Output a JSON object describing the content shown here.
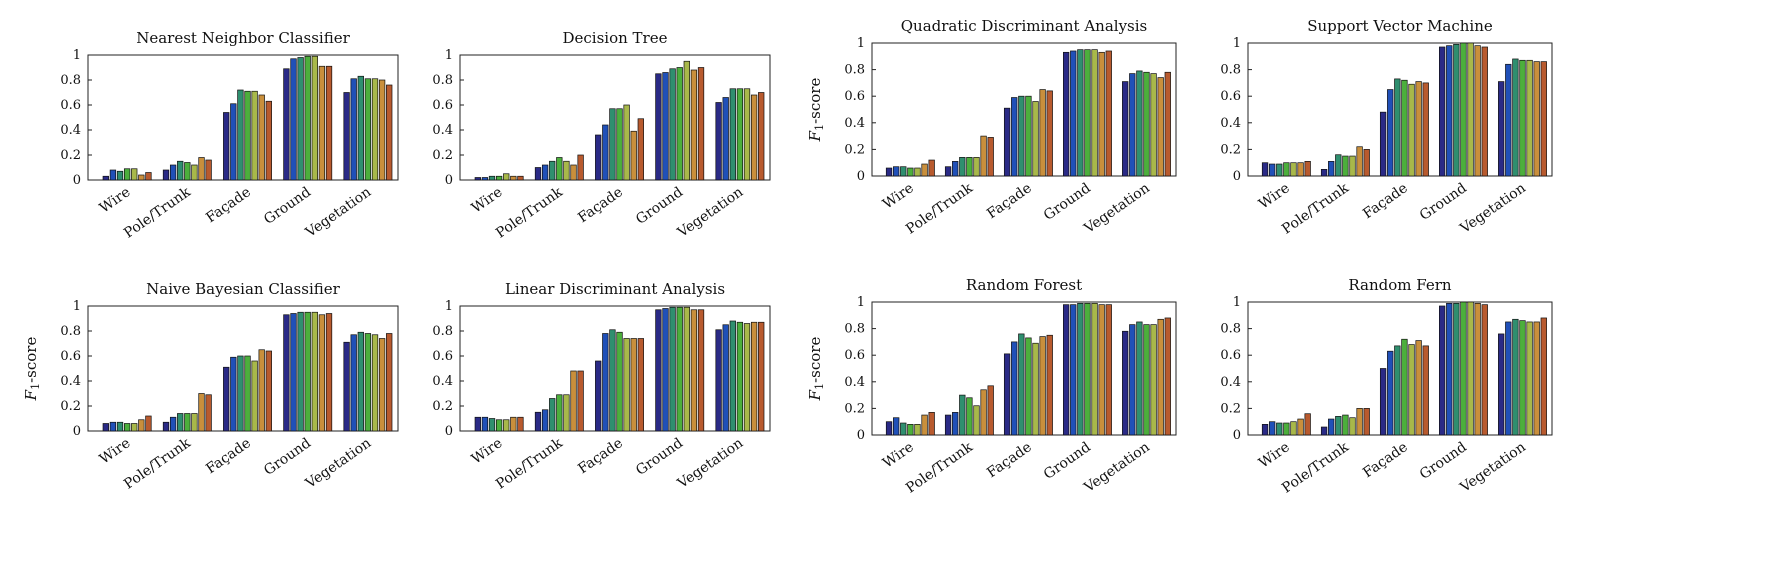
{
  "figure": {
    "ylabel_main": "F",
    "ylabel_sub": "1",
    "ylabel_rest": "-score"
  },
  "chart_data": [
    {
      "type": "bar",
      "title": "Nearest Neighbor Classifier",
      "categories": [
        "Wire",
        "Pole/Trunk",
        "Façade",
        "Ground",
        "Vegetation"
      ],
      "ylabel": "",
      "ylim": [
        0,
        1
      ],
      "yticks": [
        "0",
        "0.2",
        "0.4",
        "0.6",
        "0.8",
        "1"
      ],
      "series_colors": [
        "#2a2a86",
        "#2050b8",
        "#2f8f6f",
        "#4caf3c",
        "#a8b84a",
        "#c98f3c",
        "#b85a2e",
        "#9a2a2a"
      ],
      "values": [
        [
          0.03,
          0.08,
          0.07,
          0.09,
          0.09,
          0.04,
          0.06
        ],
        [
          0.08,
          0.12,
          0.15,
          0.14,
          0.12,
          0.18,
          0.16
        ],
        [
          0.54,
          0.61,
          0.72,
          0.71,
          0.71,
          0.68,
          0.63
        ],
        [
          0.89,
          0.97,
          0.98,
          0.99,
          0.99,
          0.91,
          0.91
        ],
        [
          0.7,
          0.81,
          0.83,
          0.81,
          0.81,
          0.8,
          0.76
        ]
      ]
    },
    {
      "type": "bar",
      "title": "Decision Tree",
      "categories": [
        "Wire",
        "Pole/Trunk",
        "Façade",
        "Ground",
        "Vegetation"
      ],
      "ylabel": "",
      "ylim": [
        0,
        1
      ],
      "yticks": [
        "0",
        "0.2",
        "0.4",
        "0.6",
        "0.8",
        "1"
      ],
      "series_colors": [
        "#2a2a86",
        "#2050b8",
        "#2f8f6f",
        "#4caf3c",
        "#a8b84a",
        "#c98f3c",
        "#b85a2e",
        "#9a2a2a"
      ],
      "values": [
        [
          0.02,
          0.02,
          0.03,
          0.03,
          0.05,
          0.03,
          0.03
        ],
        [
          0.1,
          0.12,
          0.15,
          0.18,
          0.15,
          0.12,
          0.2
        ],
        [
          0.36,
          0.44,
          0.57,
          0.57,
          0.6,
          0.39,
          0.49
        ],
        [
          0.85,
          0.86,
          0.89,
          0.9,
          0.95,
          0.88,
          0.9
        ],
        [
          0.62,
          0.66,
          0.73,
          0.73,
          0.73,
          0.68,
          0.7
        ]
      ]
    },
    {
      "type": "bar",
      "title": "Quadratic Discriminant Analysis",
      "categories": [
        "Wire",
        "Pole/Trunk",
        "Façade",
        "Ground",
        "Vegetation"
      ],
      "ylabel": "F1-score",
      "ylim": [
        0,
        1
      ],
      "yticks": [
        "0",
        "0.2",
        "0.4",
        "0.6",
        "0.8",
        "1"
      ],
      "series_colors": [
        "#2a2a86",
        "#2050b8",
        "#2f8f6f",
        "#4caf3c",
        "#a8b84a",
        "#c98f3c",
        "#b85a2e",
        "#9a2a2a"
      ],
      "values": [
        [
          0.06,
          0.07,
          0.07,
          0.06,
          0.06,
          0.09,
          0.12
        ],
        [
          0.07,
          0.11,
          0.14,
          0.14,
          0.14,
          0.3,
          0.29
        ],
        [
          0.51,
          0.59,
          0.6,
          0.6,
          0.56,
          0.65,
          0.64
        ],
        [
          0.93,
          0.94,
          0.95,
          0.95,
          0.95,
          0.93,
          0.94
        ],
        [
          0.71,
          0.77,
          0.79,
          0.78,
          0.77,
          0.74,
          0.78
        ]
      ]
    },
    {
      "type": "bar",
      "title": "Support Vector Machine",
      "categories": [
        "Wire",
        "Pole/Trunk",
        "Façade",
        "Ground",
        "Vegetation"
      ],
      "ylabel": "",
      "ylim": [
        0,
        1
      ],
      "yticks": [
        "0",
        "0.2",
        "0.4",
        "0.6",
        "0.8",
        "1"
      ],
      "series_colors": [
        "#2a2a86",
        "#2050b8",
        "#2f8f6f",
        "#4caf3c",
        "#a8b84a",
        "#c98f3c",
        "#b85a2e",
        "#9a2a2a"
      ],
      "values": [
        [
          0.1,
          0.09,
          0.09,
          0.1,
          0.1,
          0.1,
          0.11
        ],
        [
          0.05,
          0.11,
          0.16,
          0.15,
          0.15,
          0.22,
          0.2
        ],
        [
          0.48,
          0.65,
          0.73,
          0.72,
          0.69,
          0.71,
          0.7
        ],
        [
          0.97,
          0.98,
          0.99,
          1.0,
          1.0,
          0.98,
          0.97
        ],
        [
          0.71,
          0.84,
          0.88,
          0.87,
          0.87,
          0.86,
          0.86
        ]
      ]
    },
    {
      "type": "bar",
      "title": "Naive Bayesian Classifier",
      "categories": [
        "Wire",
        "Pole/Trunk",
        "Façade",
        "Ground",
        "Vegetation"
      ],
      "ylabel": "F1-score",
      "ylim": [
        0,
        1
      ],
      "yticks": [
        "0",
        "0.2",
        "0.4",
        "0.6",
        "0.8",
        "1"
      ],
      "series_colors": [
        "#2a2a86",
        "#2050b8",
        "#2f8f6f",
        "#4caf3c",
        "#a8b84a",
        "#c98f3c",
        "#b85a2e",
        "#9a2a2a"
      ],
      "values": [
        [
          0.06,
          0.07,
          0.07,
          0.06,
          0.06,
          0.09,
          0.12
        ],
        [
          0.07,
          0.11,
          0.14,
          0.14,
          0.14,
          0.3,
          0.29
        ],
        [
          0.51,
          0.59,
          0.6,
          0.6,
          0.56,
          0.65,
          0.64
        ],
        [
          0.93,
          0.94,
          0.95,
          0.95,
          0.95,
          0.93,
          0.94
        ],
        [
          0.71,
          0.77,
          0.79,
          0.78,
          0.77,
          0.74,
          0.78
        ]
      ]
    },
    {
      "type": "bar",
      "title": "Linear Discriminant Analysis",
      "categories": [
        "Wire",
        "Pole/Trunk",
        "Façade",
        "Ground",
        "Vegetation"
      ],
      "ylabel": "",
      "ylim": [
        0,
        1
      ],
      "yticks": [
        "0",
        "0.2",
        "0.4",
        "0.6",
        "0.8",
        "1"
      ],
      "series_colors": [
        "#2a2a86",
        "#2050b8",
        "#2f8f6f",
        "#4caf3c",
        "#a8b84a",
        "#c98f3c",
        "#b85a2e",
        "#9a2a2a"
      ],
      "values": [
        [
          0.11,
          0.11,
          0.1,
          0.09,
          0.09,
          0.11,
          0.11
        ],
        [
          0.15,
          0.17,
          0.26,
          0.29,
          0.29,
          0.48,
          0.48
        ],
        [
          0.56,
          0.78,
          0.81,
          0.79,
          0.74,
          0.74,
          0.74
        ],
        [
          0.97,
          0.98,
          0.99,
          0.99,
          0.99,
          0.97,
          0.97
        ],
        [
          0.81,
          0.85,
          0.88,
          0.87,
          0.86,
          0.87,
          0.87
        ]
      ]
    },
    {
      "type": "bar",
      "title": "Random Forest",
      "categories": [
        "Wire",
        "Pole/Trunk",
        "Façade",
        "Ground",
        "Vegetation"
      ],
      "ylabel": "F1-score",
      "ylim": [
        0,
        1
      ],
      "yticks": [
        "0",
        "0.2",
        "0.4",
        "0.6",
        "0.8",
        "1"
      ],
      "series_colors": [
        "#2a2a86",
        "#2050b8",
        "#2f8f6f",
        "#4caf3c",
        "#a8b84a",
        "#c98f3c",
        "#b85a2e",
        "#9a2a2a"
      ],
      "values": [
        [
          0.1,
          0.13,
          0.09,
          0.08,
          0.08,
          0.15,
          0.17
        ],
        [
          0.15,
          0.17,
          0.3,
          0.28,
          0.22,
          0.34,
          0.37
        ],
        [
          0.61,
          0.7,
          0.76,
          0.73,
          0.69,
          0.74,
          0.75
        ],
        [
          0.98,
          0.98,
          0.99,
          0.99,
          0.99,
          0.98,
          0.98
        ],
        [
          0.78,
          0.83,
          0.85,
          0.83,
          0.83,
          0.87,
          0.88
        ]
      ]
    },
    {
      "type": "bar",
      "title": "Random Fern",
      "categories": [
        "Wire",
        "Pole/Trunk",
        "Façade",
        "Ground",
        "Vegetation"
      ],
      "ylabel": "",
      "ylim": [
        0,
        1
      ],
      "yticks": [
        "0",
        "0.2",
        "0.4",
        "0.6",
        "0.8",
        "1"
      ],
      "series_colors": [
        "#2a2a86",
        "#2050b8",
        "#2f8f6f",
        "#4caf3c",
        "#a8b84a",
        "#c98f3c",
        "#b85a2e",
        "#9a2a2a"
      ],
      "values": [
        [
          0.08,
          0.1,
          0.09,
          0.09,
          0.1,
          0.12,
          0.16
        ],
        [
          0.06,
          0.12,
          0.14,
          0.15,
          0.13,
          0.2,
          0.2
        ],
        [
          0.5,
          0.63,
          0.67,
          0.72,
          0.68,
          0.71,
          0.67
        ],
        [
          0.97,
          0.99,
          0.99,
          1.0,
          1.0,
          0.99,
          0.98
        ],
        [
          0.76,
          0.85,
          0.87,
          0.86,
          0.85,
          0.85,
          0.88
        ]
      ]
    }
  ]
}
